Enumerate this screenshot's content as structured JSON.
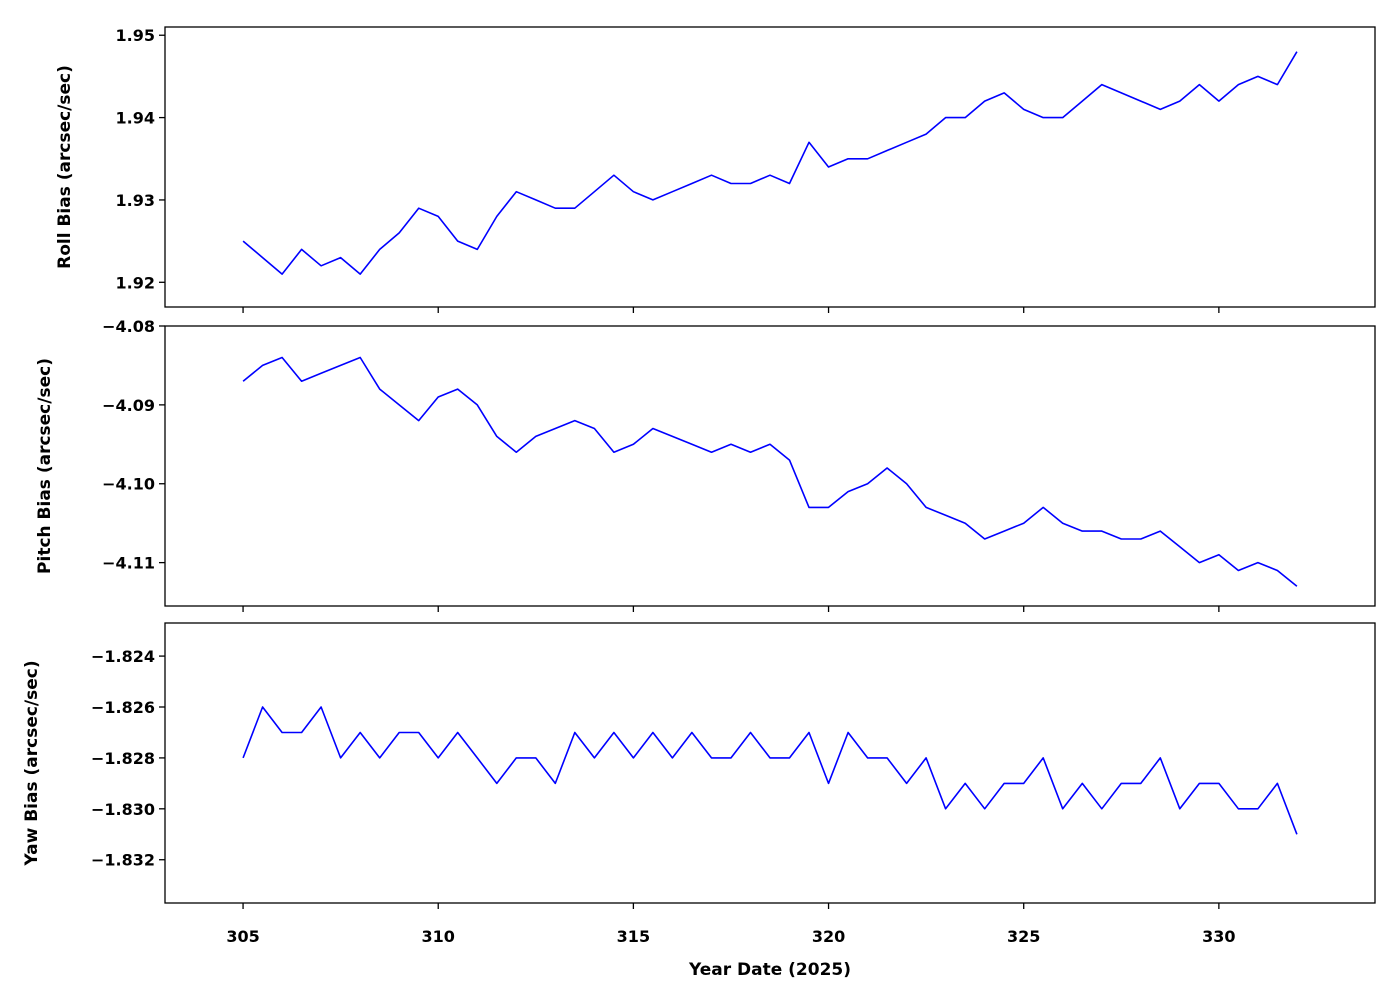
{
  "chart_data": {
    "type": "line",
    "color": "#0000ff",
    "xlabel": "Year Date (2025)",
    "xlim": [
      303,
      334
    ],
    "xticks": [
      305,
      310,
      315,
      320,
      325,
      330
    ],
    "panels": [
      {
        "ylabel": "Roll Bias (arcsec/sec)",
        "ylim": [
          1.917,
          1.951
        ],
        "yticks": [
          1.92,
          1.93,
          1.94,
          1.95
        ],
        "ytick_labels": [
          "1.92",
          "1.93",
          "1.94",
          "1.95"
        ],
        "x": [
          305.0,
          305.5,
          306.0,
          306.5,
          307.0,
          307.5,
          308.0,
          308.5,
          309.0,
          309.5,
          310.0,
          310.5,
          311.0,
          311.5,
          312.0,
          312.5,
          313.0,
          313.5,
          314.0,
          314.5,
          315.0,
          315.5,
          316.0,
          316.5,
          317.0,
          317.5,
          318.0,
          318.5,
          319.0,
          319.5,
          320.0,
          320.5,
          321.0,
          321.5,
          322.0,
          322.5,
          323.0,
          323.5,
          324.0,
          324.5,
          325.0,
          325.5,
          326.0,
          326.5,
          327.0,
          327.5,
          328.0,
          328.5,
          329.0,
          329.5,
          330.0,
          330.5,
          331.0,
          331.5,
          332.0
        ],
        "y": [
          1.925,
          1.923,
          1.921,
          1.924,
          1.922,
          1.923,
          1.921,
          1.924,
          1.926,
          1.929,
          1.928,
          1.925,
          1.924,
          1.928,
          1.931,
          1.93,
          1.929,
          1.929,
          1.931,
          1.933,
          1.931,
          1.93,
          1.931,
          1.932,
          1.933,
          1.932,
          1.932,
          1.933,
          1.932,
          1.937,
          1.934,
          1.935,
          1.935,
          1.936,
          1.937,
          1.938,
          1.94,
          1.94,
          1.942,
          1.943,
          1.941,
          1.94,
          1.94,
          1.942,
          1.944,
          1.943,
          1.942,
          1.941,
          1.942,
          1.944,
          1.942,
          1.944,
          1.945,
          1.944,
          1.948
        ]
      },
      {
        "ylabel": "Pitch Bias (arcsec/sec)",
        "ylim": [
          -4.1155,
          -4.08
        ],
        "yticks": [
          -4.08,
          -4.09,
          -4.1,
          -4.11
        ],
        "ytick_labels": [
          "−4.08",
          "−4.09",
          "−4.10",
          "−4.11"
        ],
        "x": [
          305.0,
          305.5,
          306.0,
          306.5,
          307.0,
          307.5,
          308.0,
          308.5,
          309.0,
          309.5,
          310.0,
          310.5,
          311.0,
          311.5,
          312.0,
          312.5,
          313.0,
          313.5,
          314.0,
          314.5,
          315.0,
          315.5,
          316.0,
          316.5,
          317.0,
          317.5,
          318.0,
          318.5,
          319.0,
          319.5,
          320.0,
          320.5,
          321.0,
          321.5,
          322.0,
          322.5,
          323.0,
          323.5,
          324.0,
          324.5,
          325.0,
          325.5,
          326.0,
          326.5,
          327.0,
          327.5,
          328.0,
          328.5,
          329.0,
          329.5,
          330.0,
          330.5,
          331.0,
          331.5,
          332.0
        ],
        "y": [
          -4.087,
          -4.085,
          -4.084,
          -4.087,
          -4.086,
          -4.085,
          -4.084,
          -4.088,
          -4.09,
          -4.092,
          -4.089,
          -4.088,
          -4.09,
          -4.094,
          -4.096,
          -4.094,
          -4.093,
          -4.092,
          -4.093,
          -4.096,
          -4.095,
          -4.093,
          -4.094,
          -4.095,
          -4.096,
          -4.095,
          -4.096,
          -4.095,
          -4.097,
          -4.103,
          -4.103,
          -4.101,
          -4.1,
          -4.098,
          -4.1,
          -4.103,
          -4.104,
          -4.105,
          -4.107,
          -4.106,
          -4.105,
          -4.103,
          -4.105,
          -4.106,
          -4.106,
          -4.107,
          -4.107,
          -4.106,
          -4.108,
          -4.11,
          -4.109,
          -4.111,
          -4.11,
          -4.111,
          -4.113
        ]
      },
      {
        "ylabel": "Yaw Bias (arcsec/sec)",
        "ylim": [
          -1.8337,
          -1.8227
        ],
        "yticks": [
          -1.824,
          -1.826,
          -1.828,
          -1.83,
          -1.832
        ],
        "ytick_labels": [
          "−1.824",
          "−1.826",
          "−1.828",
          "−1.830",
          "−1.832"
        ],
        "x": [
          305.0,
          305.5,
          306.0,
          306.5,
          307.0,
          307.5,
          308.0,
          308.5,
          309.0,
          309.5,
          310.0,
          310.5,
          311.0,
          311.5,
          312.0,
          312.5,
          313.0,
          313.5,
          314.0,
          314.5,
          315.0,
          315.5,
          316.0,
          316.5,
          317.0,
          317.5,
          318.0,
          318.5,
          319.0,
          319.5,
          320.0,
          320.5,
          321.0,
          321.5,
          322.0,
          322.5,
          323.0,
          323.5,
          324.0,
          324.5,
          325.0,
          325.5,
          326.0,
          326.5,
          327.0,
          327.5,
          328.0,
          328.5,
          329.0,
          329.5,
          330.0,
          330.5,
          331.0,
          331.5,
          332.0
        ],
        "y": [
          -1.828,
          -1.826,
          -1.827,
          -1.827,
          -1.826,
          -1.828,
          -1.827,
          -1.828,
          -1.827,
          -1.827,
          -1.828,
          -1.827,
          -1.828,
          -1.829,
          -1.828,
          -1.828,
          -1.829,
          -1.827,
          -1.828,
          -1.827,
          -1.828,
          -1.827,
          -1.828,
          -1.827,
          -1.828,
          -1.828,
          -1.827,
          -1.828,
          -1.828,
          -1.827,
          -1.829,
          -1.827,
          -1.828,
          -1.828,
          -1.829,
          -1.828,
          -1.83,
          -1.829,
          -1.83,
          -1.829,
          -1.829,
          -1.828,
          -1.83,
          -1.829,
          -1.83,
          -1.829,
          -1.829,
          -1.828,
          -1.83,
          -1.829,
          -1.829,
          -1.83,
          -1.83,
          -1.829,
          -1.831
        ]
      }
    ]
  }
}
